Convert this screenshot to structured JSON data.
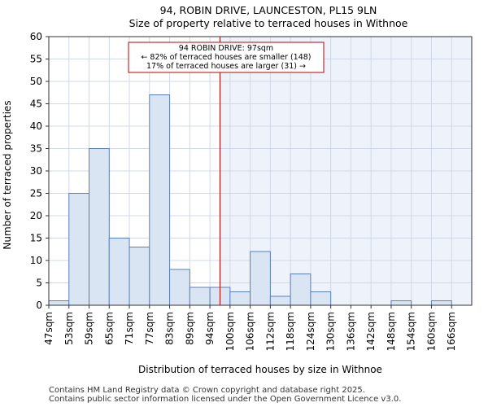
{
  "chart_data": {
    "type": "bar",
    "title": "94, ROBIN DRIVE, LAUNCESTON, PL15 9LN",
    "subtitle": "Size of property relative to terraced houses in Withnoe",
    "xlabel": "Distribution of terraced houses by size in Withnoe",
    "ylabel": "Number of terraced properties",
    "ylim": [
      0,
      60
    ],
    "yticks": [
      0,
      5,
      10,
      15,
      20,
      25,
      30,
      35,
      40,
      45,
      50,
      55,
      60
    ],
    "bin_edges": [
      47,
      53,
      59,
      65,
      71,
      77,
      83,
      89,
      94,
      100,
      106,
      112,
      118,
      124,
      130,
      136,
      142,
      148,
      154,
      160,
      166,
      172
    ],
    "categories": [
      "47sqm",
      "53sqm",
      "59sqm",
      "65sqm",
      "71sqm",
      "77sqm",
      "83sqm",
      "89sqm",
      "94sqm",
      "100sqm",
      "106sqm",
      "112sqm",
      "118sqm",
      "124sqm",
      "130sqm",
      "136sqm",
      "142sqm",
      "148sqm",
      "154sqm",
      "160sqm",
      "166sqm"
    ],
    "values": [
      1,
      25,
      35,
      15,
      13,
      47,
      8,
      4,
      4,
      3,
      12,
      2,
      7,
      3,
      0,
      0,
      0,
      1,
      0,
      1,
      0
    ],
    "property_value": 97,
    "annotation": {
      "line1": "94 ROBIN DRIVE: 97sqm",
      "line2": "← 82% of terraced houses are smaller (148)",
      "line3": "17% of terraced houses are larger (31) →"
    },
    "grid": true,
    "colors": {
      "bar_fill": "#dae5f4",
      "bar_edge": "#5a7fbf",
      "marker_line": "#bb0000",
      "highlight_fill": "#eef2fa",
      "grid": "#d0d8e8",
      "axis": "#333333"
    }
  },
  "footer": {
    "line1": "Contains HM Land Registry data © Crown copyright and database right 2025.",
    "line2": "Contains public sector information licensed under the Open Government Licence v3.0."
  }
}
